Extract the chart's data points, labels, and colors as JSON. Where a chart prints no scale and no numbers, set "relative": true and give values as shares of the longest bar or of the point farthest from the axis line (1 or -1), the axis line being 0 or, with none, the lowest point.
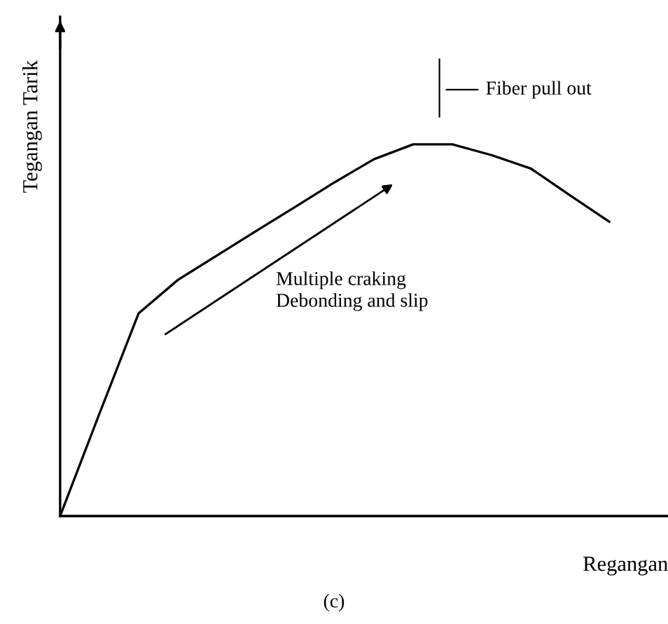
{
  "chart_data": {
    "type": "line",
    "relative": true,
    "xlabel": "Regangan",
    "ylabel": "Tegangan Tarik",
    "categories": [
      null,
      null,
      null,
      null,
      null,
      null,
      null,
      null,
      null,
      null,
      null,
      null,
      null,
      null,
      null
    ],
    "series": [
      {
        "color": "#000000",
        "values": [
          0,
          0.275,
          0.545,
          0.635,
          0.701,
          0.767,
          0.832,
          0.898,
          0.96,
          1,
          1,
          0.971,
          0.935,
          0.863,
          0.792
        ]
      }
    ],
    "annotations": [
      "Fiber pull out",
      "Multiple craking\nDebonding and slip",
      "(c)"
    ],
    "legend": false,
    "marker": "none",
    "line_style": "solid"
  }
}
